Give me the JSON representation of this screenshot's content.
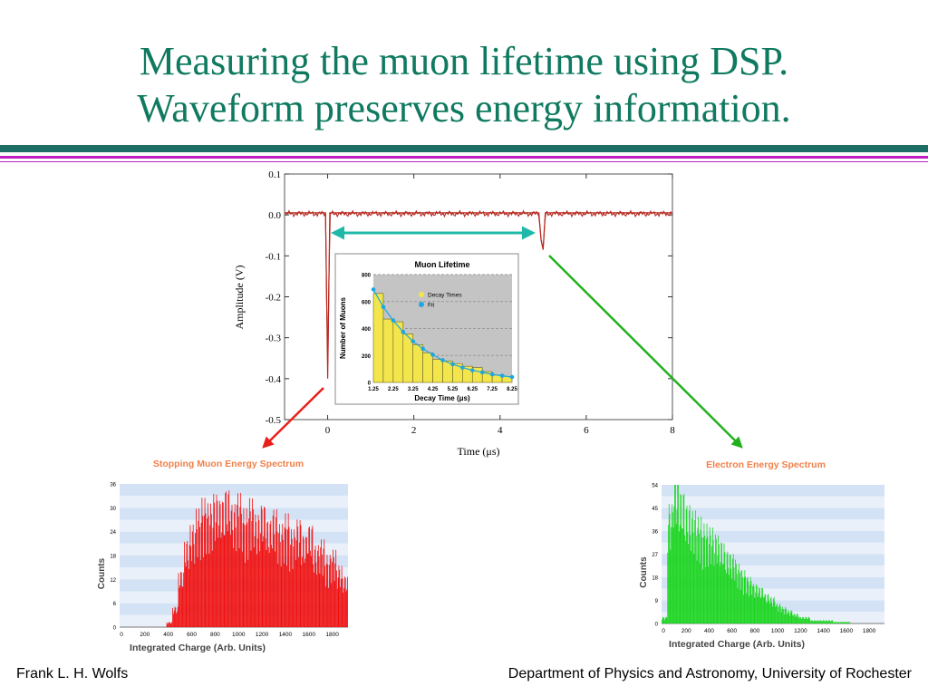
{
  "slide": {
    "title_line1": "Measuring the muon lifetime using DSP.",
    "title_line2": "Waveform preserves energy information.",
    "footer_left": "Frank L. H. Wolfs",
    "footer_right": "Department of Physics and Astronomy, University of Rochester"
  },
  "colors": {
    "title": "#0f7a60",
    "rule_teal": "#1e6e66",
    "rule_magenta": "#c21fc2",
    "waveform": "#b5281f",
    "cyan_arrow": "#20b8a8",
    "red_arrow": "#e8201a",
    "green_arrow": "#22b01e"
  },
  "chart_data": [
    {
      "type": "line",
      "xlabel": "Time (μs)",
      "ylabel": "Amplitude (V)",
      "xlim": [
        -1,
        8
      ],
      "ylim": [
        -0.5,
        0.1
      ],
      "xticks": [
        "0",
        "2",
        "4",
        "6",
        "8"
      ],
      "xtick_values": [
        0,
        2,
        4,
        6,
        8
      ],
      "yticks": [
        "0.1",
        "0.0",
        "-0.1",
        "-0.2",
        "-0.3",
        "-0.4",
        "-0.5"
      ],
      "ytick_values": [
        0.1,
        0.0,
        -0.1,
        -0.2,
        -0.3,
        -0.4,
        -0.5
      ],
      "series": [
        {
          "x": [
            -1,
            -0.05,
            0,
            0.05,
            4.9,
            4.95,
            5.0,
            5.05,
            8
          ],
          "y": [
            0.005,
            0.005,
            -0.4,
            0.005,
            0.005,
            -0.06,
            -0.085,
            0.005,
            0.005
          ]
        }
      ],
      "grid": false
    },
    {
      "type": "bar",
      "title": "Muon Lifetime",
      "xlabel": "Decay Time (μs)",
      "ylabel": "Number of Muons",
      "xticks": [
        "1.25",
        "2.25",
        "3.25",
        "4.25",
        "5.25",
        "6.25",
        "7.25",
        "8.25"
      ],
      "xlim": [
        1.25,
        8.25
      ],
      "ylim": [
        0,
        800
      ],
      "yticks": [
        "0",
        "200",
        "400",
        "600",
        "800"
      ],
      "ytick_values": [
        0,
        200,
        400,
        600,
        800
      ],
      "grid": true,
      "legend_position": "top-right",
      "series": [
        {
          "name": "Decay Times",
          "type": "bar",
          "x": [
            1.25,
            1.75,
            2.25,
            2.75,
            3.25,
            3.75,
            4.25,
            4.75,
            5.25,
            5.75,
            6.25,
            6.75,
            7.25,
            7.75
          ],
          "values": [
            660,
            470,
            450,
            360,
            280,
            220,
            170,
            160,
            140,
            120,
            110,
            80,
            55,
            45
          ]
        },
        {
          "name": "Fit",
          "type": "line",
          "x": [
            1.25,
            1.75,
            2.25,
            2.75,
            3.25,
            3.75,
            4.25,
            4.75,
            5.25,
            5.75,
            6.25,
            6.75,
            7.25,
            7.75,
            8.25
          ],
          "values": [
            690,
            560,
            460,
            375,
            305,
            250,
            205,
            165,
            135,
            110,
            90,
            75,
            60,
            50,
            40
          ]
        }
      ]
    },
    {
      "type": "bar",
      "title": "Stopping Muon Energy Spectrum",
      "xlabel": "Integrated Charge (Arb. Units)",
      "ylabel": "Counts",
      "xticks": [
        "0",
        "200",
        "400",
        "600",
        "800",
        "1000",
        "1200",
        "1400",
        "1600",
        "1800"
      ],
      "xtick_values": [
        0,
        200,
        400,
        600,
        800,
        1000,
        1200,
        1400,
        1600,
        1800
      ],
      "xlim": [
        0,
        1950
      ],
      "yticks": [
        "0",
        "6",
        "12",
        "18",
        "24",
        "30",
        "36"
      ],
      "ytick_values": [
        0,
        6,
        12,
        18,
        24,
        30,
        36
      ],
      "ylim": [
        0,
        36
      ],
      "grid": true,
      "x": [
        0,
        50,
        100,
        150,
        200,
        250,
        300,
        350,
        400,
        450,
        500,
        550,
        600,
        650,
        700,
        750,
        800,
        850,
        900,
        950,
        1000,
        1050,
        1100,
        1150,
        1200,
        1250,
        1300,
        1350,
        1400,
        1450,
        1500,
        1550,
        1600,
        1650,
        1700,
        1750,
        1800,
        1850,
        1900
      ],
      "values": [
        0,
        0,
        0,
        0,
        0,
        0,
        0,
        0,
        1,
        4,
        11,
        17,
        20,
        23,
        25,
        24,
        26,
        25,
        27,
        24,
        26,
        23,
        25,
        22,
        24,
        21,
        23,
        20,
        22,
        19,
        21,
        18,
        20,
        16,
        17,
        14,
        15,
        12,
        10
      ]
    },
    {
      "type": "bar",
      "title": "Electron Energy Spectrum",
      "xlabel": "Integrated Charge (Arb. Units)",
      "ylabel": "Counts",
      "xticks": [
        "0",
        "200",
        "400",
        "600",
        "800",
        "1000",
        "1200",
        "1400",
        "1600",
        "1800"
      ],
      "xtick_values": [
        0,
        200,
        400,
        600,
        800,
        1000,
        1200,
        1400,
        1600,
        1800
      ],
      "xlim": [
        0,
        1950
      ],
      "yticks": [
        "0",
        "9",
        "18",
        "27",
        "36",
        "45",
        "54"
      ],
      "ytick_values": [
        0,
        9,
        18,
        27,
        36,
        45,
        54
      ],
      "ylim": [
        0,
        54
      ],
      "grid": true,
      "x": [
        0,
        50,
        100,
        150,
        200,
        250,
        300,
        350,
        400,
        450,
        500,
        550,
        600,
        650,
        700,
        750,
        800,
        850,
        900,
        950,
        1000,
        1050,
        1100,
        1150,
        1200,
        1250,
        1300,
        1350,
        1400,
        1450,
        1500,
        1550,
        1600,
        1650,
        1700,
        1750,
        1800,
        1850,
        1900
      ],
      "values": [
        2,
        36,
        45,
        40,
        36,
        34,
        32,
        30,
        29,
        27,
        25,
        22,
        21,
        18,
        16,
        14,
        12,
        11,
        9,
        8,
        6,
        5,
        4,
        3,
        2,
        2,
        1,
        1,
        1,
        1,
        0.5,
        0.5,
        0.5,
        0,
        0,
        0,
        0,
        0,
        0
      ]
    }
  ]
}
